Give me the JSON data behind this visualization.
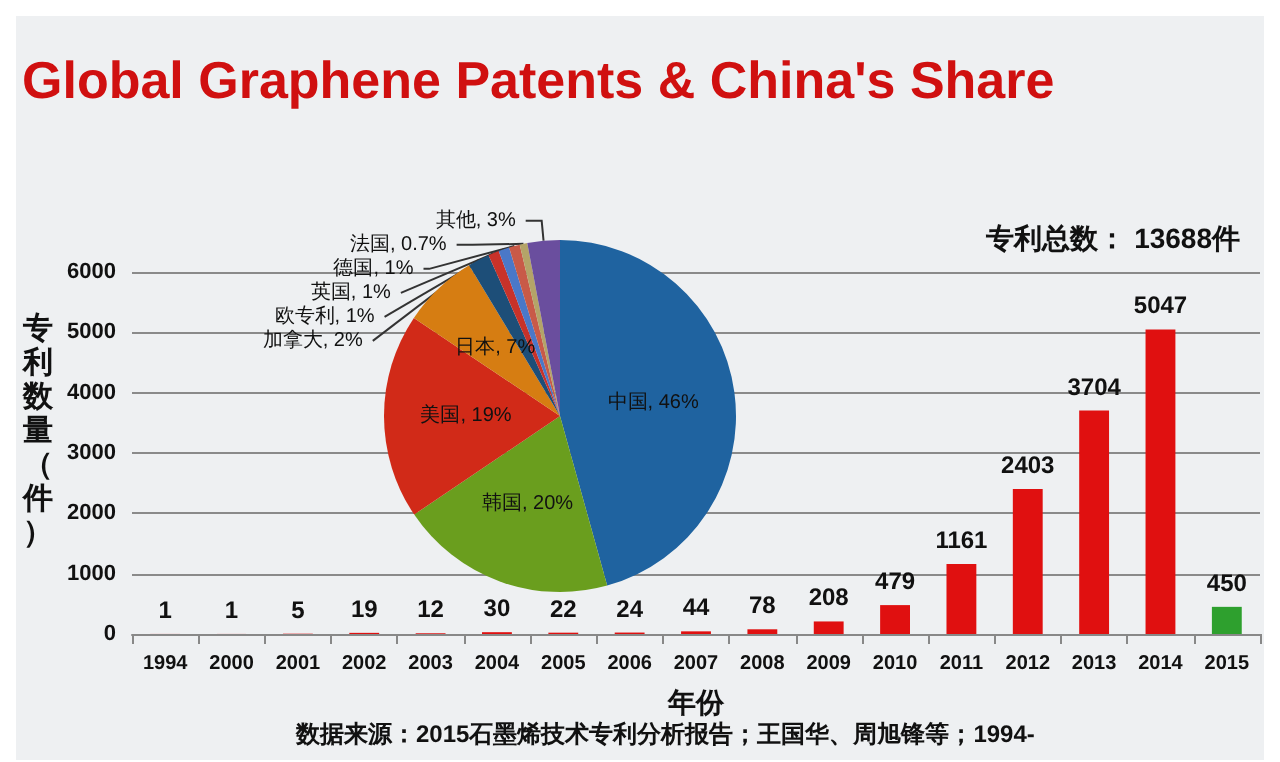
{
  "chart_data": [
    {
      "type": "bar",
      "title": "Global Graphene Patents & China's Share",
      "xlabel": "年份",
      "ylabel": "专利数量（件）",
      "categories": [
        "1994",
        "2000",
        "2001",
        "2002",
        "2003",
        "2004",
        "2005",
        "2006",
        "2007",
        "2008",
        "2009",
        "2010",
        "2011",
        "2012",
        "2013",
        "2014",
        "2015"
      ],
      "values": [
        1,
        1,
        5,
        19,
        12,
        30,
        22,
        24,
        44,
        78,
        208,
        479,
        1161,
        2403,
        3704,
        5047,
        450
      ],
      "colors": [
        "#e01010",
        "#e01010",
        "#e01010",
        "#e01010",
        "#e01010",
        "#e01010",
        "#e01010",
        "#e01010",
        "#e01010",
        "#e01010",
        "#e01010",
        "#e01010",
        "#e01010",
        "#e01010",
        "#e01010",
        "#e01010",
        "#2ea02e"
      ],
      "ylim": [
        0,
        6000
      ],
      "yticks": [
        0,
        1000,
        2000,
        3000,
        4000,
        5000,
        6000
      ],
      "grid": "y",
      "data_labels": true,
      "legend": false,
      "annotations": [
        "专利总数： 13688件",
        "数据来源：2015石墨烯技术专利分析报告；王国华、周旭锋等；1994-"
      ]
    },
    {
      "type": "pie",
      "categories": [
        "中国",
        "韩国",
        "美国",
        "日本",
        "加拿大",
        "欧专利",
        "英国",
        "德国",
        "法国",
        "其他"
      ],
      "values": [
        46,
        20,
        19,
        7,
        2,
        1,
        1,
        1,
        0.7,
        3
      ],
      "value_labels": [
        ", 46%",
        ", 20%",
        ", 19%",
        ", 7%",
        ", 2%",
        ", 1%",
        ", 1%",
        ", 1%",
        ", 0.7%",
        ", 3%"
      ],
      "colors": [
        "#1f63a0",
        "#6a9e1e",
        "#d12a18",
        "#d67d12",
        "#1d4e78",
        "#c8322a",
        "#4a78c8",
        "#c85a48",
        "#b4a468",
        "#6a4e9e"
      ],
      "legend": false
    }
  ]
}
